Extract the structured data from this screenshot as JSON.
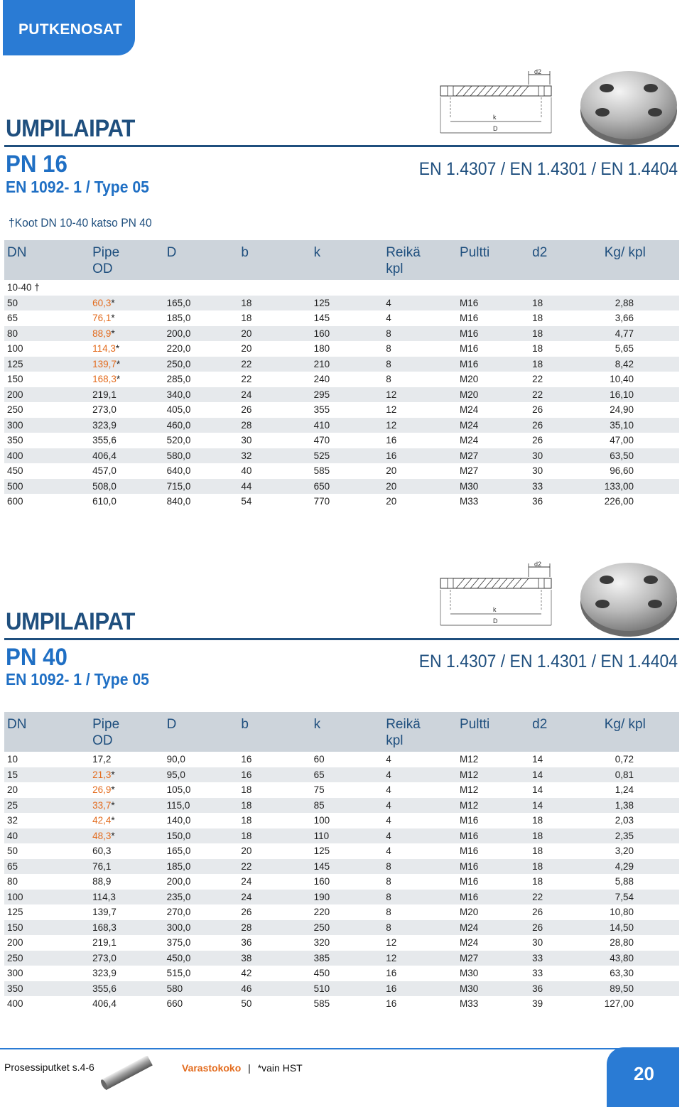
{
  "header": {
    "tab_label": "PUTKENOSAT"
  },
  "drawing_labels": {
    "d2": "d2",
    "k": "k",
    "D": "D"
  },
  "section1": {
    "title": "UMPILAIPAT",
    "pn": "PN 16",
    "standard": "EN 1092- 1 / Type 05",
    "materials": "EN 1.4307 / EN 1.4301 / EN 1.4404",
    "note": "†Koot DN 10-40 katso PN 40",
    "columns": [
      "DN",
      "Pipe OD",
      "D",
      "b",
      "k",
      "Reikä kpl",
      "Pultti",
      "d2",
      "Kg/ kpl"
    ],
    "rows": [
      [
        "10-40 †",
        "",
        "",
        "",
        "",
        "",
        "",
        "",
        ""
      ],
      [
        "50",
        "60,3",
        "165,0",
        "18",
        "125",
        "4",
        "M16",
        "18",
        "2,88"
      ],
      [
        "65",
        "76,1",
        "185,0",
        "18",
        "145",
        "4",
        "M16",
        "18",
        "3,66"
      ],
      [
        "80",
        "88,9",
        "200,0",
        "20",
        "160",
        "8",
        "M16",
        "18",
        "4,77"
      ],
      [
        "100",
        "114,3",
        "220,0",
        "20",
        "180",
        "8",
        "M16",
        "18",
        "5,65"
      ],
      [
        "125",
        "139,7",
        "250,0",
        "22",
        "210",
        "8",
        "M16",
        "18",
        "8,42"
      ],
      [
        "150",
        "168,3",
        "285,0",
        "22",
        "240",
        "8",
        "M20",
        "22",
        "10,40"
      ],
      [
        "200",
        "219,1",
        "340,0",
        "24",
        "295",
        "12",
        "M20",
        "22",
        "16,10"
      ],
      [
        "250",
        "273,0",
        "405,0",
        "26",
        "355",
        "12",
        "M24",
        "26",
        "24,90"
      ],
      [
        "300",
        "323,9",
        "460,0",
        "28",
        "410",
        "12",
        "M24",
        "26",
        "35,10"
      ],
      [
        "350",
        "355,6",
        "520,0",
        "30",
        "470",
        "16",
        "M24",
        "26",
        "47,00"
      ],
      [
        "400",
        "406,4",
        "580,0",
        "32",
        "525",
        "16",
        "M27",
        "30",
        "63,50"
      ],
      [
        "450",
        "457,0",
        "640,0",
        "40",
        "585",
        "20",
        "M27",
        "30",
        "96,60"
      ],
      [
        "500",
        "508,0",
        "715,0",
        "44",
        "650",
        "20",
        "M30",
        "33",
        "133,00"
      ],
      [
        "600",
        "610,0",
        "840,0",
        "54",
        "770",
        "20",
        "M33",
        "36",
        "226,00"
      ]
    ],
    "stocked": [
      false,
      true,
      true,
      true,
      true,
      true,
      true,
      false,
      false,
      false,
      false,
      false,
      false,
      false,
      false
    ]
  },
  "section2": {
    "title": "UMPILAIPAT",
    "pn": "PN 40",
    "standard": "EN 1092- 1 / Type 05",
    "materials": "EN 1.4307 / EN 1.4301 / EN 1.4404",
    "columns": [
      "DN",
      "Pipe OD",
      "D",
      "b",
      "k",
      "Reikä kpl",
      "Pultti",
      "d2",
      "Kg/ kpl"
    ],
    "rows": [
      [
        "10",
        "17,2",
        "90,0",
        "16",
        "60",
        "4",
        "M12",
        "14",
        "0,72"
      ],
      [
        "15",
        "21,3",
        "95,0",
        "16",
        "65",
        "4",
        "M12",
        "14",
        "0,81"
      ],
      [
        "20",
        "26,9",
        "105,0",
        "18",
        "75",
        "4",
        "M12",
        "14",
        "1,24"
      ],
      [
        "25",
        "33,7",
        "115,0",
        "18",
        "85",
        "4",
        "M12",
        "14",
        "1,38"
      ],
      [
        "32",
        "42,4",
        "140,0",
        "18",
        "100",
        "4",
        "M16",
        "18",
        "2,03"
      ],
      [
        "40",
        "48,3",
        "150,0",
        "18",
        "110",
        "4",
        "M16",
        "18",
        "2,35"
      ],
      [
        "50",
        "60,3",
        "165,0",
        "20",
        "125",
        "4",
        "M16",
        "18",
        "3,20"
      ],
      [
        "65",
        "76,1",
        "185,0",
        "22",
        "145",
        "8",
        "M16",
        "18",
        "4,29"
      ],
      [
        "80",
        "88,9",
        "200,0",
        "24",
        "160",
        "8",
        "M16",
        "18",
        "5,88"
      ],
      [
        "100",
        "114,3",
        "235,0",
        "24",
        "190",
        "8",
        "M16",
        "22",
        "7,54"
      ],
      [
        "125",
        "139,7",
        "270,0",
        "26",
        "220",
        "8",
        "M20",
        "26",
        "10,80"
      ],
      [
        "150",
        "168,3",
        "300,0",
        "28",
        "250",
        "8",
        "M24",
        "26",
        "14,50"
      ],
      [
        "200",
        "219,1",
        "375,0",
        "36",
        "320",
        "12",
        "M24",
        "30",
        "28,80"
      ],
      [
        "250",
        "273,0",
        "450,0",
        "38",
        "385",
        "12",
        "M27",
        "33",
        "43,80"
      ],
      [
        "300",
        "323,9",
        "515,0",
        "42",
        "450",
        "16",
        "M30",
        "33",
        "63,30"
      ],
      [
        "350",
        "355,6",
        "580",
        "46",
        "510",
        "16",
        "M30",
        "36",
        "89,50"
      ],
      [
        "400",
        "406,4",
        "660",
        "50",
        "585",
        "16",
        "M33",
        "39",
        "127,00"
      ]
    ],
    "stocked": [
      false,
      true,
      true,
      true,
      true,
      true,
      false,
      false,
      false,
      false,
      false,
      false,
      false,
      false,
      false,
      false,
      false
    ]
  },
  "footer": {
    "ref": "Prosessiputket s.4-6",
    "legend_stock": "Varastokoko",
    "legend_sep": "|",
    "legend_note": "*vain HST",
    "page_number": "20"
  },
  "colors": {
    "accent_blue": "#2a7bd4",
    "title_navy": "#1f4f7e",
    "stock_orange": "#e36b1d",
    "header_gray": "#cdd4db"
  }
}
